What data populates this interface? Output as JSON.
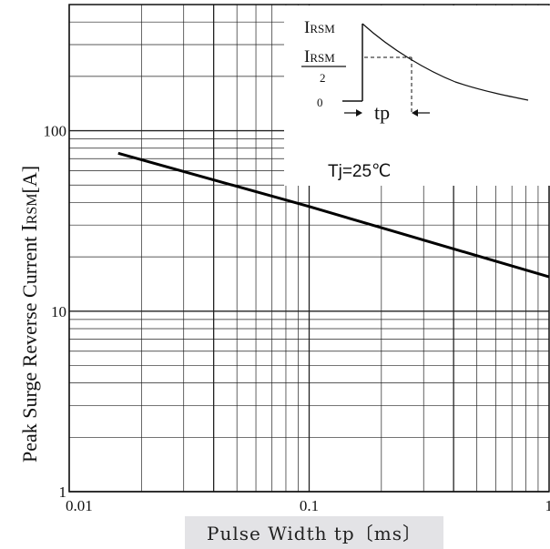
{
  "chart_data": {
    "type": "line",
    "title": "",
    "xlabel": "Pulse Width  tp〔ms〕",
    "ylabel_prefix": "Peak Surge Reverse Current ",
    "ylabel_symbol": "I",
    "ylabel_sub": "RSM",
    "ylabel_unit": "[A]",
    "xscale": "log",
    "yscale": "log",
    "xlim": [
      0.01,
      1
    ],
    "ylim": [
      1,
      500
    ],
    "grid": true,
    "x_ticks": [
      {
        "value": 0.01,
        "label": "0.01"
      },
      {
        "value": 0.1,
        "label": "0.1"
      },
      {
        "value": 1,
        "label": "1"
      }
    ],
    "y_ticks": [
      {
        "value": 1,
        "label": "1"
      },
      {
        "value": 10,
        "label": "10"
      },
      {
        "value": 100,
        "label": "100"
      }
    ],
    "series": [
      {
        "values": [
          {
            "x": 0.016,
            "y": 75
          },
          {
            "x": 0.1,
            "y": 38
          },
          {
            "x": 1,
            "y": 15.5
          }
        ]
      }
    ],
    "annotation": "Tj=25℃",
    "inset": {
      "peak_label": "I",
      "peak_sub": "RSM",
      "half_label_num_i": "I",
      "half_label_num_sub": "RSM",
      "half_label_den": "2",
      "zero_label": "0",
      "width_label": "tp"
    }
  }
}
